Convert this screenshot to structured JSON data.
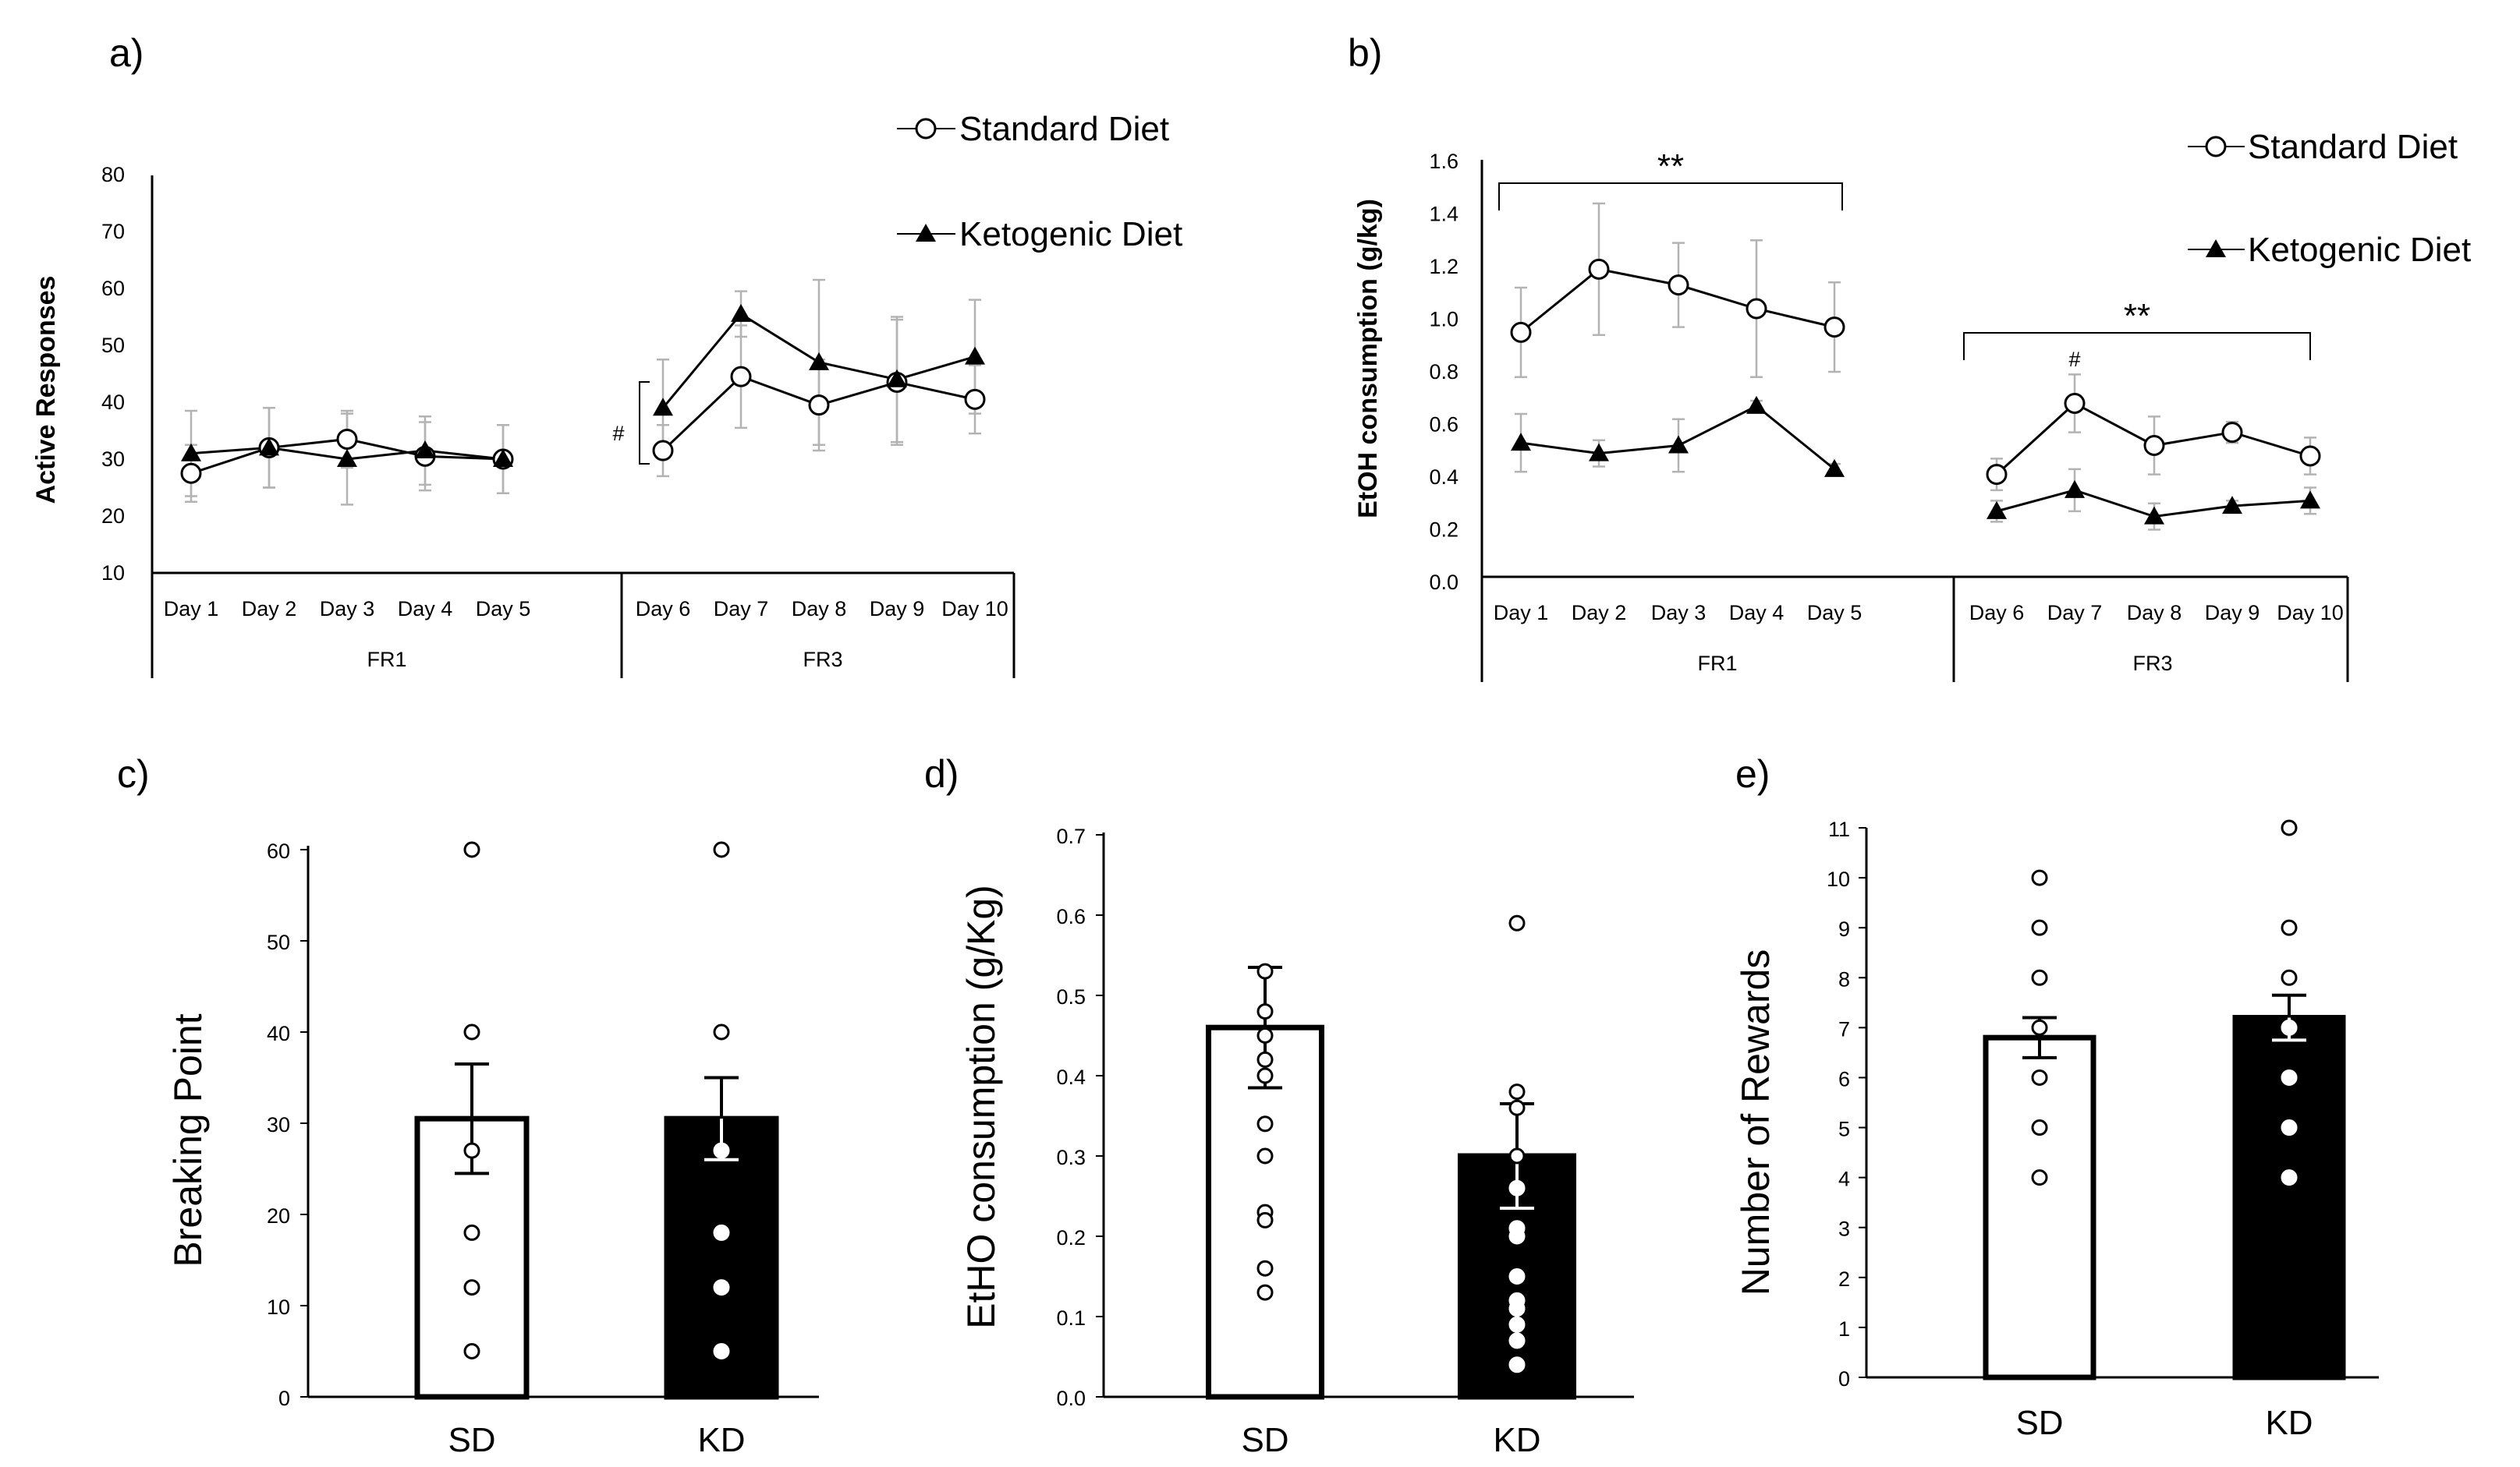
{
  "colors": {
    "standard": "#ffffff",
    "ketogenic": "#000000",
    "stroke": "#000000",
    "error": "#b3b3b3"
  },
  "legend": {
    "standard": "Standard Diet",
    "ketogenic": "Ketogenic Diet"
  },
  "chart_data": [
    {
      "id": "a",
      "panel_label": "a)",
      "type": "line",
      "ylabel": "Active Responses",
      "ylim": [
        10,
        80
      ],
      "yticks": [
        "10",
        "20",
        "30",
        "40",
        "50",
        "60",
        "70",
        "80"
      ],
      "categories": [
        "Day 1",
        "Day 2",
        "Day 3",
        "Day 4",
        "Day 5",
        "Day 6",
        "Day 7",
        "Day 8",
        "Day 9",
        "Day 10"
      ],
      "groups": [
        "FR1",
        "FR3"
      ],
      "series": [
        {
          "name": "Standard Diet",
          "marker": "circle",
          "values": [
            27.5,
            32,
            33.5,
            30.5,
            30,
            31.5,
            44.5,
            39.5,
            43.5,
            40.5
          ],
          "errors": [
            5,
            7,
            5,
            6,
            6,
            4.5,
            9,
            8,
            11,
            6
          ]
        },
        {
          "name": "Ketogenic Diet",
          "marker": "triangle",
          "values": [
            31,
            32,
            30,
            31.5,
            30,
            39,
            55.5,
            47,
            44,
            48
          ],
          "errors": [
            7.5,
            7,
            8,
            6,
            6,
            8.5,
            4,
            14.5,
            11,
            10
          ]
        }
      ],
      "annotations": [
        "#"
      ]
    },
    {
      "id": "b",
      "panel_label": "b)",
      "type": "line",
      "ylabel": "EtOH consumption (g/kg)",
      "ylim": [
        0,
        1.6
      ],
      "yticks": [
        "0.0",
        "0.2",
        "0.4",
        "0.6",
        "0.8",
        "1.0",
        "1.2",
        "1.4",
        "1.6"
      ],
      "categories": [
        "Day 1",
        "Day 2",
        "Day 3",
        "Day 4",
        "Day 5",
        "Day 6",
        "Day 7",
        "Day 8",
        "Day 9",
        "Day 10"
      ],
      "groups": [
        "FR1",
        "FR3"
      ],
      "series": [
        {
          "name": "Standard Diet",
          "marker": "circle",
          "values": [
            0.95,
            1.19,
            1.13,
            1.04,
            0.97,
            0.41,
            0.68,
            0.52,
            0.57,
            0.48
          ],
          "errors": [
            0.17,
            0.25,
            0.16,
            0.26,
            0.17,
            0.06,
            0.11,
            0.11,
            0.04,
            0.07
          ]
        },
        {
          "name": "Ketogenic Diet",
          "marker": "triangle",
          "values": [
            0.53,
            0.49,
            0.52,
            0.67,
            0.43,
            0.27,
            0.35,
            0.25,
            0.29,
            0.31
          ],
          "errors": [
            0.11,
            0.05,
            0.1,
            0.02,
            0.02,
            0.04,
            0.08,
            0.05,
            0.02,
            0.05
          ]
        }
      ],
      "annotations": [
        "**",
        "**",
        "#"
      ]
    },
    {
      "id": "c",
      "panel_label": "c)",
      "type": "bar",
      "ylabel": "Breaking Point",
      "ylim": [
        0,
        60
      ],
      "yticks": [
        "0",
        "10",
        "20",
        "30",
        "40",
        "50",
        "60"
      ],
      "categories": [
        "SD",
        "KD"
      ],
      "values": [
        30.5,
        30.5
      ],
      "errors": [
        6,
        4.5
      ],
      "points": [
        [
          60,
          40,
          27,
          18,
          12,
          5
        ],
        [
          60,
          40,
          27,
          18,
          12,
          5
        ]
      ]
    },
    {
      "id": "d",
      "panel_label": "d)",
      "type": "bar",
      "ylabel": "EtHO consumption (g/Kg)",
      "ylim": [
        0,
        0.7
      ],
      "yticks": [
        "0.0",
        "0.1",
        "0.2",
        "0.3",
        "0.4",
        "0.5",
        "0.6",
        "0.7"
      ],
      "categories": [
        "SD",
        "KD"
      ],
      "values": [
        0.46,
        0.3
      ],
      "errors": [
        0.075,
        0.065
      ],
      "points": [
        [
          0.53,
          0.48,
          0.45,
          0.42,
          0.4,
          0.34,
          0.3,
          0.23,
          0.22,
          0.16,
          0.13
        ],
        [
          0.59,
          0.38,
          0.36,
          0.3,
          0.26,
          0.21,
          0.2,
          0.15,
          0.12,
          0.11,
          0.09,
          0.07,
          0.04
        ]
      ]
    },
    {
      "id": "e",
      "panel_label": "e)",
      "type": "bar",
      "ylabel": "Number of Rewards",
      "ylim": [
        0,
        11
      ],
      "yticks": [
        "0",
        "1",
        "2",
        "3",
        "4",
        "5",
        "6",
        "7",
        "8",
        "9",
        "10",
        "11"
      ],
      "categories": [
        "SD",
        "KD"
      ],
      "values": [
        6.8,
        7.2
      ],
      "errors": [
        0.4,
        0.45
      ],
      "points": [
        [
          10,
          9,
          8,
          7,
          6,
          5,
          4
        ],
        [
          11,
          9,
          8,
          7,
          6,
          5,
          4
        ]
      ]
    }
  ]
}
